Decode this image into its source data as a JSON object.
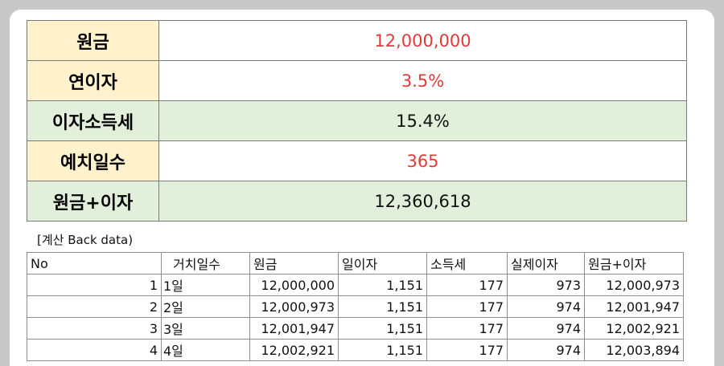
{
  "summary": [
    {
      "label": "원금",
      "value": "12,000,000",
      "color": "red",
      "bg": "white"
    },
    {
      "label": "연이자",
      "value": "3.5%",
      "color": "red",
      "bg": "white"
    },
    {
      "label": "이자소득세",
      "value": "15.4%",
      "color": "black",
      "bg": "green"
    },
    {
      "label": "예치일수",
      "value": "365",
      "color": "red",
      "bg": "white"
    },
    {
      "label": "원금+이자",
      "value": "12,360,618",
      "color": "black",
      "bg": "green"
    }
  ],
  "caption": "[계산 Back data)",
  "back_table": {
    "headers": [
      "No",
      "거치일수",
      "원금",
      "일이자",
      "소득세",
      "실제이자",
      "원금+이자"
    ],
    "rows": [
      [
        "1",
        "1일",
        "12,000,000",
        "1,151",
        "177",
        "973",
        "12,000,973"
      ],
      [
        "2",
        "2일",
        "12,000,973",
        "1,151",
        "177",
        "974",
        "12,001,947"
      ],
      [
        "3",
        "3일",
        "12,001,947",
        "1,151",
        "177",
        "974",
        "12,002,921"
      ],
      [
        "4",
        "4일",
        "12,002,921",
        "1,151",
        "177",
        "974",
        "12,003,894"
      ]
    ]
  },
  "colors": {
    "accent_red": "#e03a3a",
    "label_bg": "#fff2cc",
    "green_bg": "#e2efda",
    "page_bg": "#c8c8c8"
  }
}
